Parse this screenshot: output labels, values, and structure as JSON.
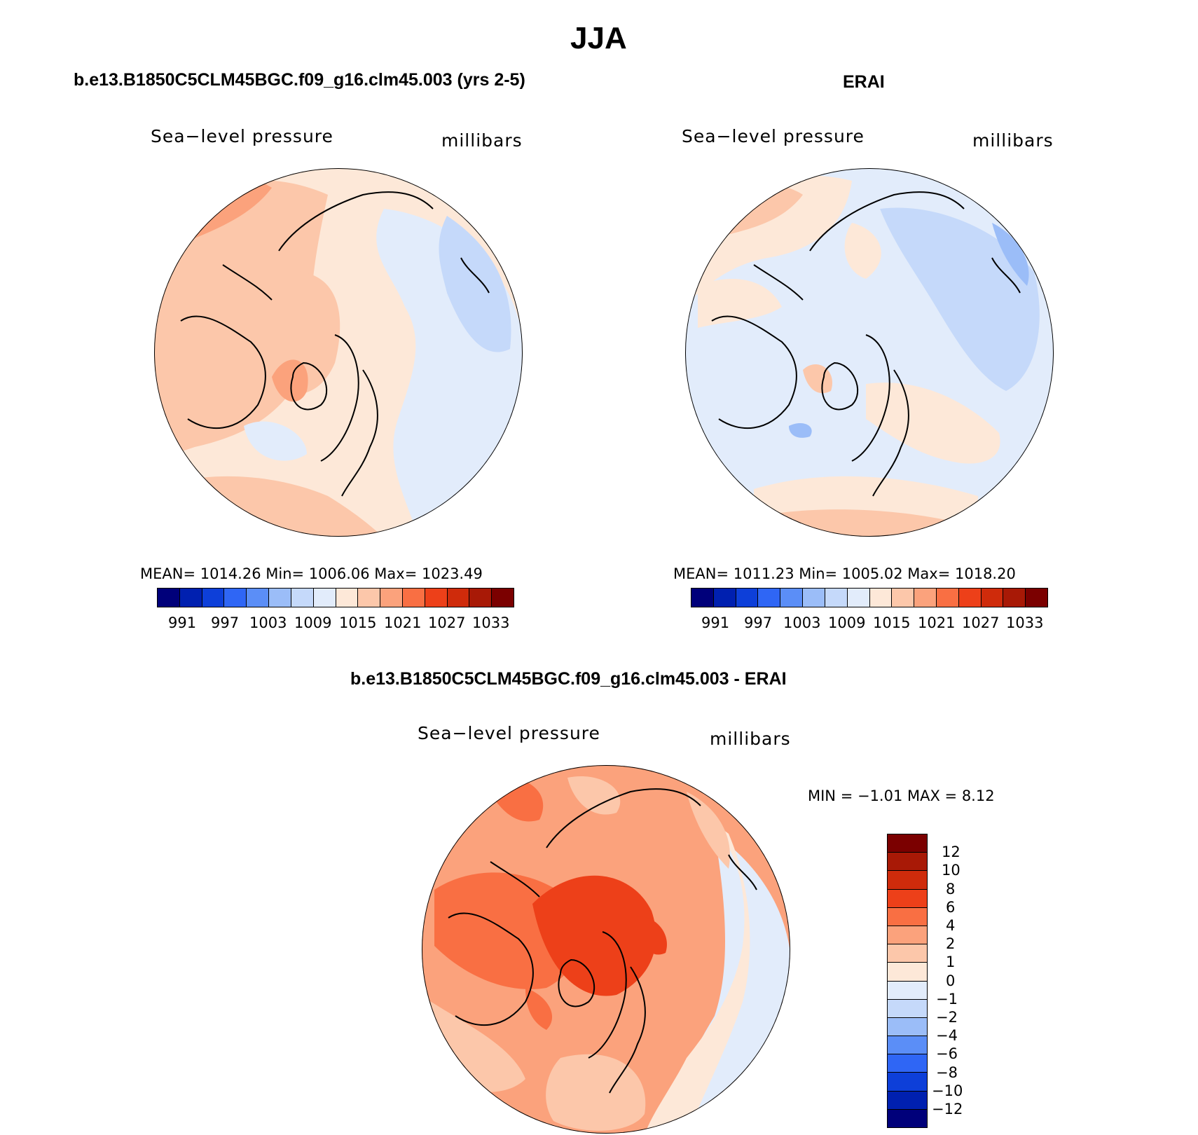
{
  "page": {
    "title": "JJA"
  },
  "panels": [
    {
      "subtitle": "b.e13.B1850C5CLM45BGC.f09_g16.clm45.003 (yrs 2-5)",
      "variable": "Sea−level pressure",
      "units": "millibars",
      "stats": "MEAN=  1014.26    Min=  1006.06    Max=  1023.49",
      "tick_labels": [
        "991",
        "997",
        "1003",
        "1009",
        "1015",
        "1021",
        "1027",
        "1033"
      ]
    },
    {
      "subtitle": "ERAI",
      "variable": "Sea−level pressure",
      "units": "millibars",
      "stats": "MEAN=  1011.23    Min=  1005.02    Max=  1018.20",
      "tick_labels": [
        "991",
        "997",
        "1003",
        "1009",
        "1015",
        "1021",
        "1027",
        "1033"
      ]
    },
    {
      "subtitle": "b.e13.B1850C5CLM45BGC.f09_g16.clm45.003 - ERAI",
      "variable": "Sea−level pressure",
      "units": "millibars",
      "stats": "MIN =   −1.01  MAX =     8.12",
      "tick_labels": [
        "12",
        "10",
        "8",
        "6",
        "4",
        "2",
        "1",
        "0",
        "−1",
        "−2",
        "−4",
        "−6",
        "−8",
        "−10",
        "−12"
      ]
    }
  ],
  "colors": {
    "abs_scale": [
      "#00007a",
      "#0020b0",
      "#0d3fd9",
      "#2f66f5",
      "#5b8ef7",
      "#9bbdf8",
      "#c5d9fa",
      "#e2ecfb",
      "#fde8d8",
      "#fcc7aa",
      "#fba27c",
      "#f96f43",
      "#ed4019",
      "#cf2b0b",
      "#a81906",
      "#7b0000"
    ],
    "diff_scale": [
      "#7b0000",
      "#a81906",
      "#cf2b0b",
      "#ed4019",
      "#f96f43",
      "#fba27c",
      "#fcc7aa",
      "#fde8d8",
      "#e2ecfb",
      "#c5d9fa",
      "#9bbdf8",
      "#5b8ef7",
      "#2f66f5",
      "#0d3fd9",
      "#0020b0",
      "#00007a"
    ]
  }
}
